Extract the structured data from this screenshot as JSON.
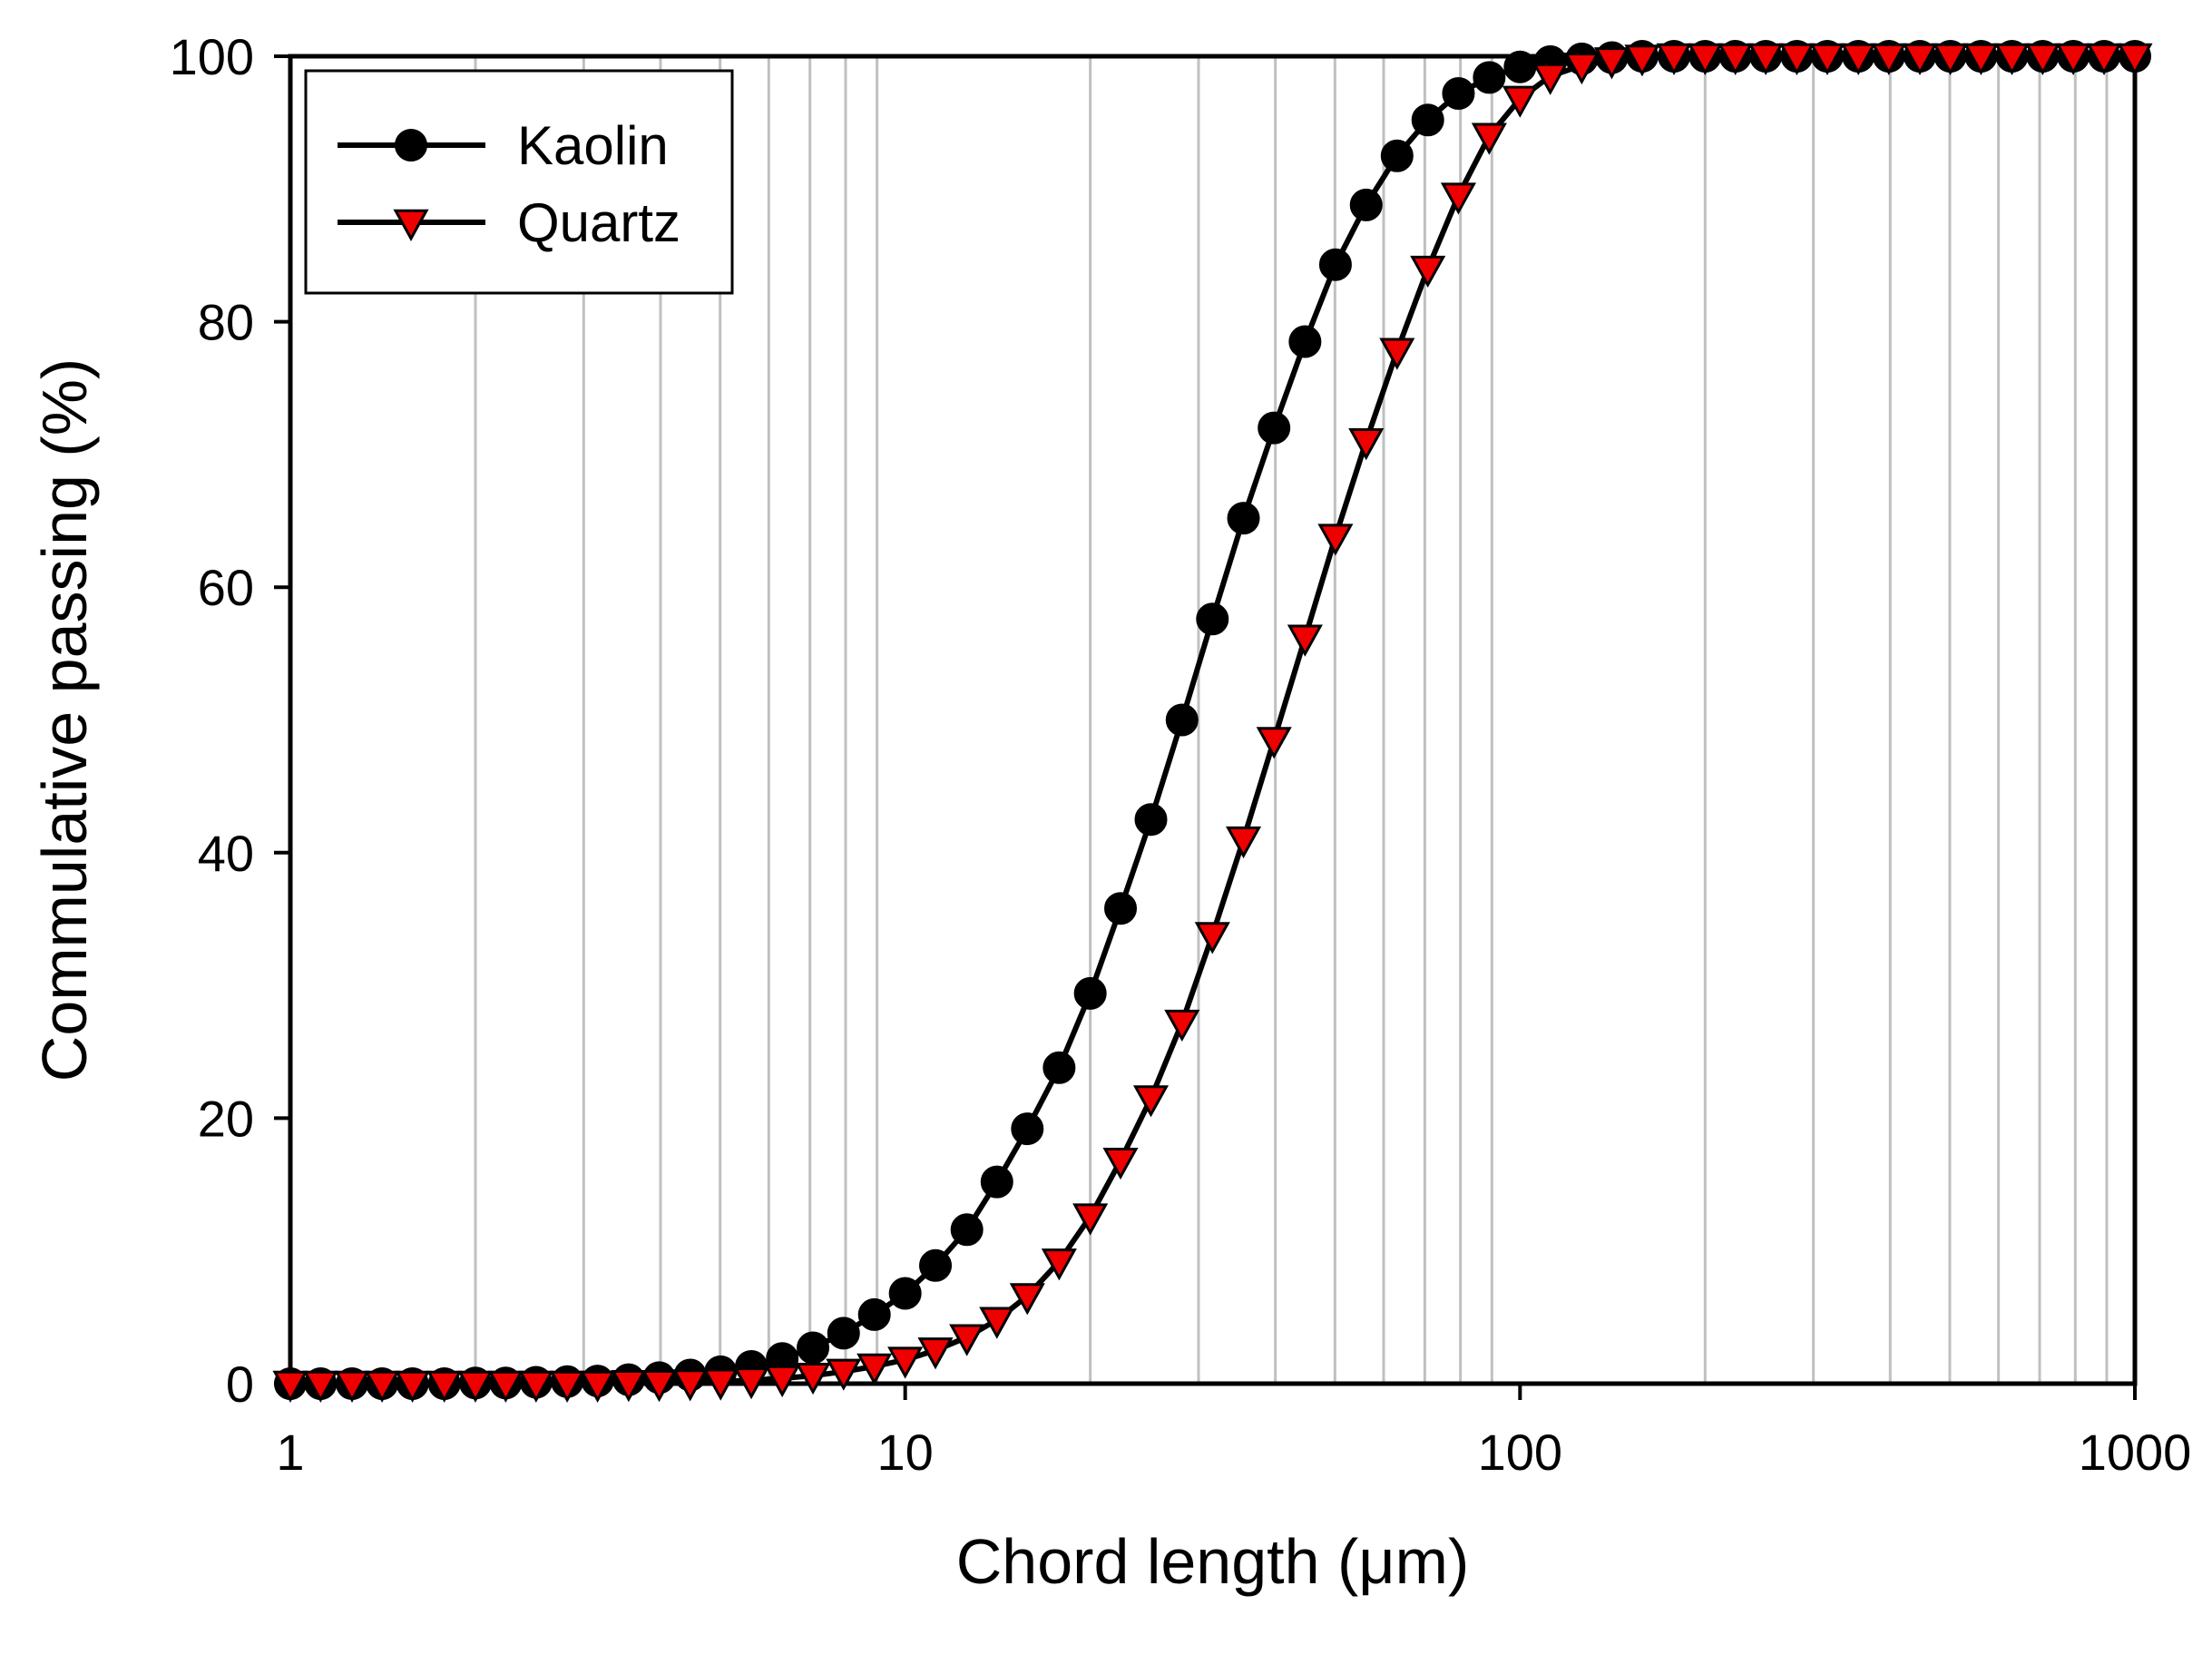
{
  "chart_data": {
    "type": "line",
    "title": "",
    "xlabel": "Chord length (μm)",
    "ylabel": "Commulative passing (%)",
    "x_scale": "log",
    "xlim": [
      1,
      1000
    ],
    "ylim": [
      0,
      100
    ],
    "x_ticks": [
      1,
      10,
      100,
      1000
    ],
    "x_tick_labels": [
      "1",
      "10",
      "100",
      "1000"
    ],
    "y_ticks": [
      0,
      20,
      40,
      60,
      80,
      100
    ],
    "y_tick_labels": [
      "0",
      "20",
      "40",
      "60",
      "80",
      "100"
    ],
    "grid": "vertical minor gridlines on log x axis",
    "legend_position": "top-left",
    "series": [
      {
        "name": "Kaolin",
        "marker": "circle",
        "marker_color": "#000000",
        "line_color": "#000000",
        "points": [
          [
            1.0,
            0.0
          ],
          [
            1.12,
            0.0
          ],
          [
            1.26,
            0.0
          ],
          [
            1.41,
            0.0
          ],
          [
            1.58,
            0.0
          ],
          [
            1.78,
            0.0
          ],
          [
            2.0,
            0.05
          ],
          [
            2.24,
            0.05
          ],
          [
            2.51,
            0.1
          ],
          [
            2.82,
            0.15
          ],
          [
            3.16,
            0.2
          ],
          [
            3.55,
            0.3
          ],
          [
            3.98,
            0.45
          ],
          [
            4.47,
            0.65
          ],
          [
            5.01,
            0.9
          ],
          [
            5.62,
            1.3
          ],
          [
            6.31,
            1.9
          ],
          [
            7.08,
            2.7
          ],
          [
            7.94,
            3.8
          ],
          [
            8.91,
            5.2
          ],
          [
            10.0,
            6.8
          ],
          [
            11.2,
            8.9
          ],
          [
            12.6,
            11.6
          ],
          [
            14.1,
            15.2
          ],
          [
            15.8,
            19.2
          ],
          [
            17.8,
            23.8
          ],
          [
            20.0,
            29.4
          ],
          [
            22.4,
            35.8
          ],
          [
            25.1,
            42.5
          ],
          [
            28.2,
            50.0
          ],
          [
            31.6,
            57.6
          ],
          [
            35.5,
            65.2
          ],
          [
            39.8,
            72.0
          ],
          [
            44.7,
            78.5
          ],
          [
            50.1,
            84.3
          ],
          [
            56.2,
            88.8
          ],
          [
            63.1,
            92.5
          ],
          [
            70.8,
            95.2
          ],
          [
            79.4,
            97.2
          ],
          [
            89.1,
            98.4
          ],
          [
            100.0,
            99.2
          ],
          [
            112.0,
            99.6
          ],
          [
            126.0,
            99.8
          ],
          [
            141.0,
            99.9
          ],
          [
            158.0,
            100.0
          ],
          [
            178.0,
            100.0
          ],
          [
            200.0,
            100.0
          ],
          [
            224.0,
            100.0
          ],
          [
            251.0,
            100.0
          ],
          [
            282.0,
            100.0
          ],
          [
            316.0,
            100.0
          ],
          [
            355.0,
            100.0
          ],
          [
            398.0,
            100.0
          ],
          [
            447.0,
            100.0
          ],
          [
            501.0,
            100.0
          ],
          [
            562.0,
            100.0
          ],
          [
            631.0,
            100.0
          ],
          [
            708.0,
            100.0
          ],
          [
            794.0,
            100.0
          ],
          [
            891.0,
            100.0
          ],
          [
            1000.0,
            100.0
          ]
        ]
      },
      {
        "name": "Quartz",
        "marker": "triangle-down",
        "marker_color": "#ee0000",
        "line_color": "#000000",
        "points": [
          [
            1.0,
            0.0
          ],
          [
            1.12,
            0.0
          ],
          [
            1.26,
            0.0
          ],
          [
            1.41,
            0.0
          ],
          [
            1.58,
            0.0
          ],
          [
            1.78,
            0.0
          ],
          [
            2.0,
            0.0
          ],
          [
            2.24,
            0.0
          ],
          [
            2.51,
            0.0
          ],
          [
            2.82,
            0.0
          ],
          [
            3.16,
            0.0
          ],
          [
            3.55,
            0.05
          ],
          [
            3.98,
            0.05
          ],
          [
            4.47,
            0.1
          ],
          [
            5.01,
            0.15
          ],
          [
            5.62,
            0.25
          ],
          [
            6.31,
            0.4
          ],
          [
            7.08,
            0.6
          ],
          [
            7.94,
            0.9
          ],
          [
            8.91,
            1.3
          ],
          [
            10.0,
            1.8
          ],
          [
            11.2,
            2.5
          ],
          [
            12.6,
            3.5
          ],
          [
            14.1,
            4.8
          ],
          [
            15.8,
            6.6
          ],
          [
            17.8,
            9.2
          ],
          [
            20.0,
            12.6
          ],
          [
            22.4,
            16.8
          ],
          [
            25.1,
            21.5
          ],
          [
            28.2,
            27.2
          ],
          [
            31.6,
            33.8
          ],
          [
            35.5,
            41.0
          ],
          [
            39.8,
            48.5
          ],
          [
            44.7,
            56.2
          ],
          [
            50.1,
            63.8
          ],
          [
            56.2,
            71.0
          ],
          [
            63.1,
            77.8
          ],
          [
            70.8,
            84.0
          ],
          [
            79.4,
            89.5
          ],
          [
            89.1,
            94.0
          ],
          [
            100.0,
            96.8
          ],
          [
            112.0,
            98.5
          ],
          [
            126.0,
            99.3
          ],
          [
            141.0,
            99.7
          ],
          [
            158.0,
            99.9
          ],
          [
            178.0,
            100.0
          ],
          [
            200.0,
            100.0
          ],
          [
            224.0,
            100.0
          ],
          [
            251.0,
            100.0
          ],
          [
            282.0,
            100.0
          ],
          [
            316.0,
            100.0
          ],
          [
            355.0,
            100.0
          ],
          [
            398.0,
            100.0
          ],
          [
            447.0,
            100.0
          ],
          [
            501.0,
            100.0
          ],
          [
            562.0,
            100.0
          ],
          [
            631.0,
            100.0
          ],
          [
            708.0,
            100.0
          ],
          [
            794.0,
            100.0
          ],
          [
            891.0,
            100.0
          ],
          [
            1000.0,
            100.0
          ]
        ]
      }
    ]
  }
}
